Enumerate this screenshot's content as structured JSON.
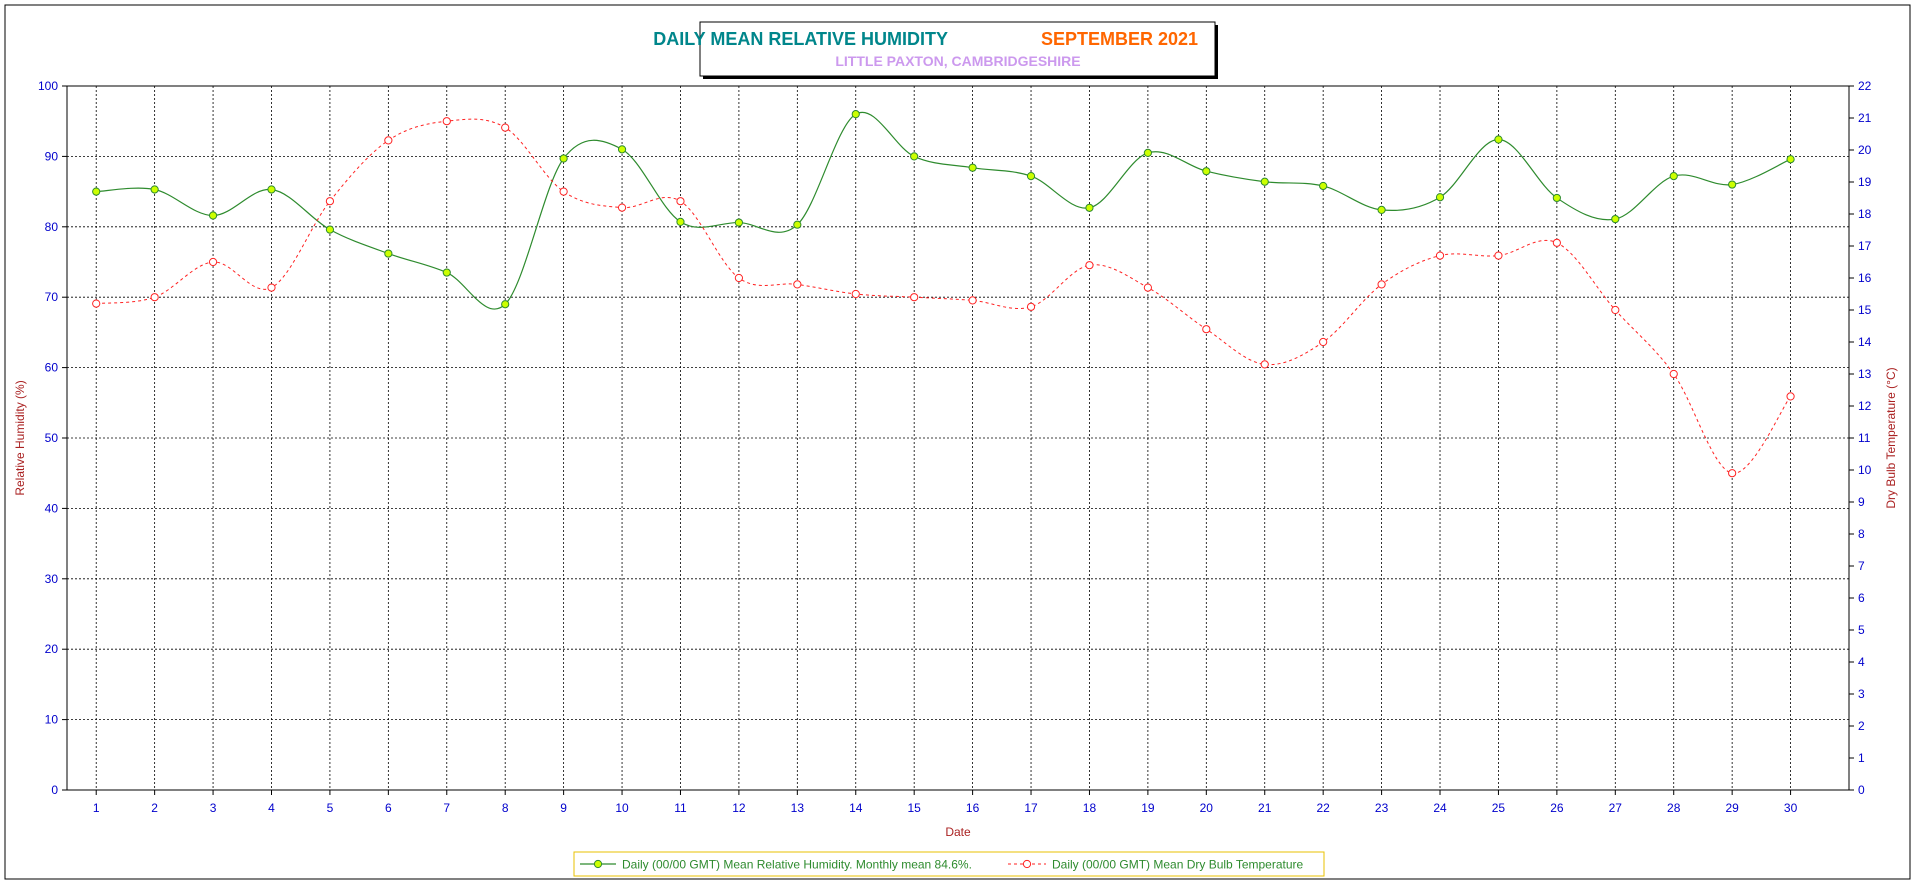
{
  "chart_data": {
    "type": "line",
    "title": "DAILY MEAN RELATIVE HUMIDITY",
    "title_period": "SEPTEMBER 2021",
    "subtitle": "LITTLE PAXTON, CAMBRIDGESHIRE",
    "xlabel": "Date",
    "ylabel_left": "Relative Humidity (%)",
    "ylabel_right": "Dry Bulb Temperature (°C)",
    "x": [
      1,
      2,
      3,
      4,
      5,
      6,
      7,
      8,
      9,
      10,
      11,
      12,
      13,
      14,
      15,
      16,
      17,
      18,
      19,
      20,
      21,
      22,
      23,
      24,
      25,
      26,
      27,
      28,
      29,
      30
    ],
    "ylim_left": [
      0,
      100
    ],
    "ylim_right": [
      0,
      22
    ],
    "yticks_left": [
      0,
      10,
      20,
      30,
      40,
      50,
      60,
      70,
      80,
      90,
      100
    ],
    "yticks_right": [
      0,
      1,
      2,
      3,
      4,
      5,
      6,
      7,
      8,
      9,
      10,
      11,
      12,
      13,
      14,
      15,
      16,
      17,
      18,
      19,
      20,
      21,
      22
    ],
    "grid": true,
    "legend_position": "bottom",
    "series": [
      {
        "name": "Daily (00/00 GMT) Mean Relative Humidity. Monthly mean 84.6%.",
        "axis": "left",
        "style": "solid",
        "color": "#2e8b2e",
        "marker_fill": "#ccff00",
        "values": [
          85.0,
          85.3,
          81.6,
          85.3,
          79.6,
          76.2,
          73.5,
          69.0,
          89.7,
          91.0,
          80.7,
          80.6,
          80.3,
          96.0,
          90.0,
          88.4,
          87.2,
          82.7,
          90.5,
          87.9,
          86.4,
          85.8,
          82.4,
          84.2,
          92.4,
          84.1,
          81.1,
          87.2,
          86.0,
          89.6
        ]
      },
      {
        "name": "Daily (00/00 GMT) Mean Dry Bulb Temperature",
        "axis": "right",
        "style": "dashed",
        "color": "#ff2222",
        "marker_fill": "#ffffff",
        "values": [
          15.2,
          15.4,
          16.5,
          15.7,
          18.4,
          20.3,
          20.9,
          20.7,
          18.7,
          18.2,
          18.4,
          16.0,
          15.8,
          15.5,
          15.4,
          15.3,
          15.1,
          16.4,
          15.7,
          14.4,
          13.3,
          14.0,
          15.8,
          16.7,
          16.7,
          17.1,
          15.0,
          13.0,
          9.9,
          12.3
        ]
      }
    ],
    "colors": {
      "title": "#00868b",
      "title_period": "#ff6600",
      "subtitle": "#cc99ee",
      "axis_ticks": "#0000cc",
      "axis_labels": "#aa2222",
      "legend_text": "#2e8b2e",
      "legend_border": "#e8c200"
    }
  }
}
